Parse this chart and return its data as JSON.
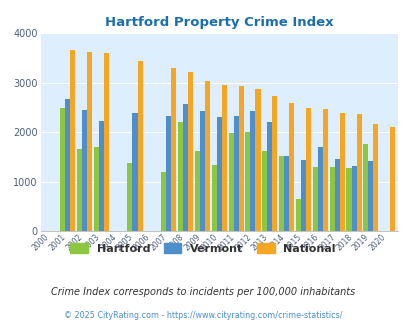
{
  "title": "Hartford Property Crime Index",
  "title_color": "#1a6faf",
  "years": [
    2000,
    2001,
    2002,
    2003,
    2004,
    2005,
    2006,
    2007,
    2008,
    2009,
    2010,
    2011,
    2012,
    2013,
    2014,
    2015,
    2016,
    2017,
    2018,
    2019,
    2020
  ],
  "hartford": [
    0,
    2490,
    1650,
    1700,
    0,
    1370,
    0,
    1200,
    2200,
    1620,
    1340,
    1980,
    2000,
    1620,
    1520,
    650,
    1290,
    1290,
    1270,
    1750,
    0
  ],
  "vermont": [
    0,
    2670,
    2450,
    2230,
    0,
    2390,
    0,
    2330,
    2560,
    2420,
    2310,
    2320,
    2420,
    2210,
    1510,
    1430,
    1700,
    1450,
    1320,
    1410,
    0
  ],
  "national": [
    0,
    3650,
    3620,
    3600,
    0,
    3440,
    0,
    3290,
    3220,
    3040,
    2950,
    2930,
    2870,
    2730,
    2580,
    2480,
    2460,
    2380,
    2360,
    2170,
    2110
  ],
  "hartford_color": "#8dc63f",
  "vermont_color": "#4d8fcc",
  "national_color": "#f5a623",
  "bg_color": "#ddeeff",
  "ylim": [
    0,
    4000
  ],
  "yticks": [
    0,
    1000,
    2000,
    3000,
    4000
  ],
  "subtitle": "Crime Index corresponds to incidents per 100,000 inhabitants",
  "footer": "© 2025 CityRating.com - https://www.cityrating.com/crime-statistics/",
  "subtitle_color": "#333333",
  "footer_color": "#4d8fcc"
}
